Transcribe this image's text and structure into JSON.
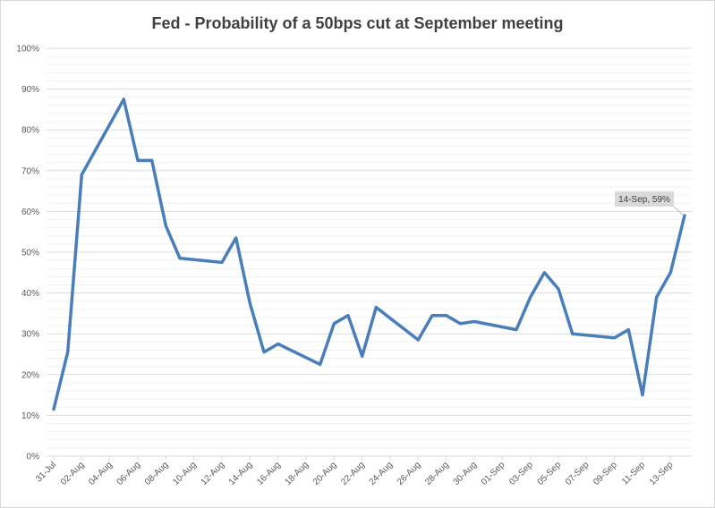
{
  "chart_data": {
    "type": "line",
    "title": "Fed - Probability of a 50bps cut at September meeting",
    "xlabel": "",
    "ylabel": "",
    "ylim": [
      0,
      1
    ],
    "y_tick_labels": [
      "0%",
      "10%",
      "20%",
      "30%",
      "40%",
      "50%",
      "60%",
      "70%",
      "80%",
      "90%",
      "100%"
    ],
    "x_tick_labels": [
      "31-Jul",
      "02-Aug",
      "04-Aug",
      "06-Aug",
      "08-Aug",
      "10-Aug",
      "12-Aug",
      "14-Aug",
      "16-Aug",
      "18-Aug",
      "20-Aug",
      "22-Aug",
      "24-Aug",
      "26-Aug",
      "28-Aug",
      "30-Aug",
      "01-Sep",
      "03-Sep",
      "05-Sep",
      "07-Sep",
      "09-Sep",
      "11-Sep",
      "13-Sep"
    ],
    "grid": true,
    "legend": "none",
    "series_color": "#4a7ebb",
    "series": [
      {
        "x": [
          "31-Jul",
          "01-Aug",
          "02-Aug",
          "05-Aug",
          "06-Aug",
          "07-Aug",
          "08-Aug",
          "09-Aug",
          "12-Aug",
          "13-Aug",
          "14-Aug",
          "15-Aug",
          "16-Aug",
          "19-Aug",
          "20-Aug",
          "21-Aug",
          "22-Aug",
          "23-Aug",
          "26-Aug",
          "27-Aug",
          "28-Aug",
          "29-Aug",
          "30-Aug",
          "02-Sep",
          "03-Sep",
          "04-Sep",
          "05-Sep",
          "06-Sep",
          "09-Sep",
          "10-Sep",
          "11-Sep",
          "12-Sep",
          "13-Sep",
          "14-Sep"
        ],
        "values": [
          0.115,
          0.255,
          0.69,
          0.875,
          0.725,
          0.725,
          0.565,
          0.485,
          0.475,
          0.535,
          0.375,
          0.255,
          0.275,
          0.225,
          0.325,
          0.345,
          0.245,
          0.365,
          0.285,
          0.345,
          0.345,
          0.325,
          0.33,
          0.31,
          0.39,
          0.45,
          0.41,
          0.3,
          0.29,
          0.31,
          0.15,
          0.39,
          0.45,
          0.59
        ]
      }
    ],
    "annotation": "14-Sep, 59%"
  }
}
